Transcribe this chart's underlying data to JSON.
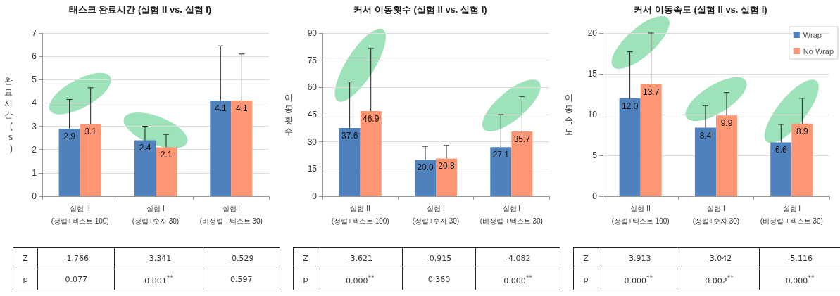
{
  "chart_data": [
    {
      "type": "bar",
      "title": "태스크 완료시간 (실험 II vs. 실험 I)",
      "ylabel": "완료시간(s)",
      "categories": [
        "실험 II\n(정렬+텍스트 100)",
        "실험 I\n(정렬+숫자 30)",
        "실험 I\n(비정렬 +텍스트 30)"
      ],
      "series": [
        {
          "color": "#4f81bd",
          "values": [
            2.9,
            2.4,
            4.1
          ],
          "value_labels": [
            "2.9",
            "2.4",
            "4.1"
          ],
          "errors": [
            [
              2.9,
              4.15
            ],
            [
              2.4,
              3.0
            ],
            [
              4.1,
              6.45
            ]
          ]
        },
        {
          "color": "#ff9673",
          "values": [
            3.1,
            2.1,
            4.1
          ],
          "value_labels": [
            "3.1",
            "2.1",
            "4.1"
          ],
          "errors": [
            [
              3.1,
              4.65
            ],
            [
              2.1,
              2.65
            ],
            [
              4.1,
              6.1
            ]
          ]
        }
      ],
      "ylim": [
        0,
        7
      ],
      "yticks": [
        0,
        1,
        2,
        3,
        4,
        5,
        6,
        7
      ],
      "grid": "y",
      "legend": false,
      "annotations": [
        "Z",
        "-1.766",
        "-3.341",
        "-0.529",
        "p",
        "0.077",
        "0.001$^{**}$",
        "0.597"
      ]
    },
    {
      "type": "bar",
      "title": "커서 이동횟수 (실험 II vs. 실험 I)",
      "ylabel": "이동횟수",
      "categories": [
        "실험 II\n(정렬+텍스트 100)",
        "실험 I\n(정렬+숫자 30)",
        "실험 I\n(비정렬 +텍스트 30)"
      ],
      "series": [
        {
          "color": "#4f81bd",
          "values": [
            37.6,
            20.0,
            27.1
          ],
          "value_labels": [
            "37.6",
            "20.0",
            "27.1"
          ],
          "errors": [
            [
              37.6,
              63
            ],
            [
              20.0,
              27.5
            ],
            [
              27.1,
              45
            ]
          ]
        },
        {
          "color": "#ff9673",
          "values": [
            46.9,
            20.8,
            35.7
          ],
          "value_labels": [
            "46.9",
            "20.8",
            "35.7"
          ],
          "errors": [
            [
              46.9,
              81.5
            ],
            [
              20.8,
              28
            ],
            [
              35.7,
              55
            ]
          ]
        }
      ],
      "ylim": [
        0,
        90
      ],
      "yticks": [
        0,
        15,
        30,
        45,
        60,
        75,
        90
      ],
      "grid": "y",
      "legend": false,
      "annotations": [
        "Z",
        "-3.621",
        "-0.915",
        "-4.082",
        "p",
        "0.000$^{**}$",
        "0.360",
        "0.000$^{**}$"
      ]
    },
    {
      "type": "bar",
      "title": "커서 이동속도 (실험 II vs. 실험 I)",
      "ylabel": "이동속도",
      "categories": [
        "실험 II\n(정렬+텍스트 100)",
        "실험 I\n(정렬+숫자 30)",
        "실험 I\n(비정렬 +텍스트 30)"
      ],
      "series": [
        {
          "name": "Wrap",
          "color": "#4f81bd",
          "values": [
            12.0,
            8.4,
            6.6
          ],
          "value_labels": [
            "12.0",
            "8.4",
            "6.6"
          ],
          "errors": [
            [
              12.0,
              17.7
            ],
            [
              8.4,
              11.1
            ],
            [
              6.6,
              8.8
            ]
          ]
        },
        {
          "name": "No Wrap",
          "color": "#ff9673",
          "values": [
            13.7,
            9.9,
            8.9
          ],
          "value_labels": [
            "13.7",
            "9.9",
            "8.9"
          ],
          "errors": [
            [
              13.7,
              20
            ],
            [
              9.9,
              12.7
            ],
            [
              8.9,
              12.0
            ]
          ]
        }
      ],
      "ylim": [
        0,
        20
      ],
      "yticks": [
        0,
        5,
        10,
        15,
        20
      ],
      "grid": "y",
      "legend": "top right",
      "annotations": [
        "Z",
        "-3.913",
        "-3.042",
        "-5.116",
        "p",
        "0.000$^{**}$",
        "0.002$^{**}$",
        "0.000$^{**}$"
      ]
    }
  ]
}
